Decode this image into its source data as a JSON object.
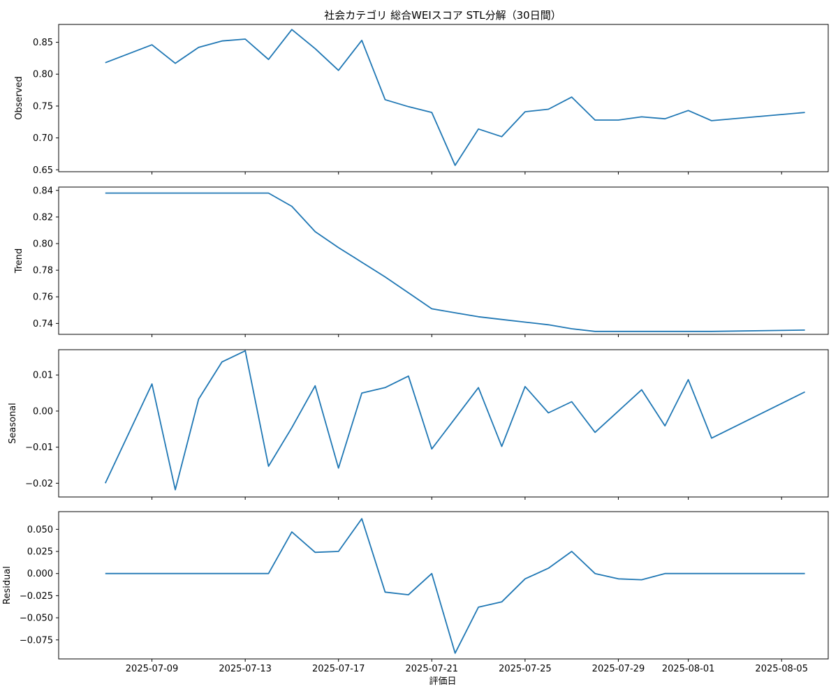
{
  "chart_data": {
    "type": "line",
    "title": "社会カテゴリ 総合WEIスコア STL分解（30日間）",
    "xlabel": "評価日",
    "line_color": "#1f77b4",
    "x": [
      "2025-07-07",
      "2025-07-09",
      "2025-07-10",
      "2025-07-11",
      "2025-07-12",
      "2025-07-13",
      "2025-07-14",
      "2025-07-15",
      "2025-07-16",
      "2025-07-17",
      "2025-07-18",
      "2025-07-19",
      "2025-07-20",
      "2025-07-21",
      "2025-07-22",
      "2025-07-23",
      "2025-07-24",
      "2025-07-25",
      "2025-07-26",
      "2025-07-27",
      "2025-07-28",
      "2025-07-29",
      "2025-07-30",
      "2025-07-31",
      "2025-08-01",
      "2025-08-02",
      "2025-08-06"
    ],
    "x_ticks": [
      "2025-07-09",
      "2025-07-13",
      "2025-07-17",
      "2025-07-21",
      "2025-07-25",
      "2025-07-29",
      "2025-08-01",
      "2025-08-05"
    ],
    "x_range": [
      "2025-07-05",
      "2025-08-07"
    ],
    "panels": [
      {
        "ylabel": "Observed",
        "ylim": [
          0.647,
          0.878
        ],
        "yticks": [
          0.65,
          0.7,
          0.75,
          0.8,
          0.85
        ],
        "ytick_labels": [
          "0.65",
          "0.70",
          "0.75",
          "0.80",
          "0.85"
        ],
        "values": [
          0.818,
          0.846,
          0.817,
          0.842,
          0.852,
          0.855,
          0.823,
          0.87,
          0.84,
          0.806,
          0.853,
          0.76,
          0.749,
          0.74,
          0.657,
          0.714,
          0.702,
          0.741,
          0.745,
          0.764,
          0.728,
          0.728,
          0.733,
          0.73,
          0.743,
          0.727,
          0.74
        ]
      },
      {
        "ylabel": "Trend",
        "ylim": [
          0.7318,
          0.8425
        ],
        "yticks": [
          0.74,
          0.76,
          0.78,
          0.8,
          0.82,
          0.84
        ],
        "ytick_labels": [
          "0.74",
          "0.76",
          "0.78",
          "0.80",
          "0.82",
          "0.84"
        ],
        "values": [
          0.838,
          0.838,
          0.838,
          0.838,
          0.838,
          0.838,
          0.838,
          0.828,
          0.809,
          0.797,
          0.786,
          0.775,
          0.763,
          0.751,
          0.748,
          0.745,
          0.743,
          0.741,
          0.739,
          0.736,
          0.734,
          0.734,
          0.734,
          0.734,
          0.734,
          0.734,
          0.735
        ]
      },
      {
        "ylabel": "Seasonal",
        "ylim": [
          -0.0238,
          0.017
        ],
        "yticks": [
          -0.02,
          -0.01,
          0.0,
          0.01
        ],
        "ytick_labels": [
          "−0.02",
          "−0.01",
          "0.00",
          "0.01"
        ],
        "values": [
          -0.02,
          0.0075,
          -0.0218,
          0.0033,
          0.0136,
          0.0167,
          -0.0153,
          -0.0046,
          0.007,
          -0.0158,
          0.005,
          0.0065,
          0.0097,
          -0.0105,
          -0.002,
          0.0065,
          -0.0098,
          0.0068,
          -0.0005,
          0.0026,
          -0.0059,
          0.0,
          0.0059,
          -0.0041,
          0.0087,
          -0.0075,
          0.0053
        ]
      },
      {
        "ylabel": "Residual",
        "ylim": [
          -0.0965,
          0.07
        ],
        "yticks": [
          -0.075,
          -0.05,
          -0.025,
          0.0,
          0.025,
          0.05
        ],
        "ytick_labels": [
          "−0.075",
          "−0.050",
          "−0.025",
          "0.000",
          "0.025",
          "0.050"
        ],
        "values": [
          0.0,
          0.0,
          0.0,
          0.0,
          0.0,
          0.0,
          0.0,
          0.047,
          0.024,
          0.025,
          0.062,
          -0.021,
          -0.024,
          0.0,
          -0.09,
          -0.038,
          -0.032,
          -0.006,
          0.006,
          0.025,
          0.0,
          -0.006,
          -0.007,
          0.0,
          0.0,
          0.0,
          0.0
        ]
      }
    ]
  }
}
